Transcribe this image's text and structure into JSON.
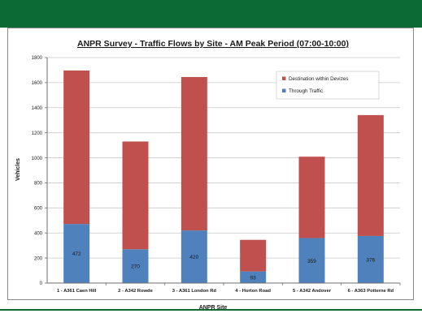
{
  "colors": {
    "header": "#0c6b34",
    "through": "#4f81bd",
    "destination": "#c0504d",
    "grid": "#c8c8c8",
    "axis": "#6e6e6e",
    "text": "#1a1a1a"
  },
  "chart_data": {
    "type": "bar",
    "stacked": true,
    "title": "ANPR Survey - Traffic Flows by Site - AM Peak Period (07:00-10:00)",
    "xlabel": "ANPR Site",
    "ylabel": "Vehicles",
    "ylim": [
      0,
      1800
    ],
    "yticks": [
      0,
      200,
      400,
      600,
      800,
      1000,
      1200,
      1400,
      1600,
      1800
    ],
    "grid": true,
    "legend_position": "top-right",
    "categories": [
      "1 - A361 Caen Hill",
      "2 - A342 Rowde",
      "3 - A361 London Rd",
      "4 - Horton Road",
      "5 - A342 Andover",
      "6 - A363 Potterne Rd"
    ],
    "series": [
      {
        "name": "Through Traffic",
        "values": [
          472,
          270,
          420,
          93,
          359,
          376
        ],
        "labels": [
          "472",
          "270",
          "420",
          "93",
          "359",
          "376"
        ]
      },
      {
        "name": "Destination within Devizes",
        "values": [
          1225,
          860,
          1225,
          252,
          650,
          965
        ]
      }
    ],
    "legend_order": [
      "Destination within Devizes",
      "Through Traffic"
    ]
  }
}
